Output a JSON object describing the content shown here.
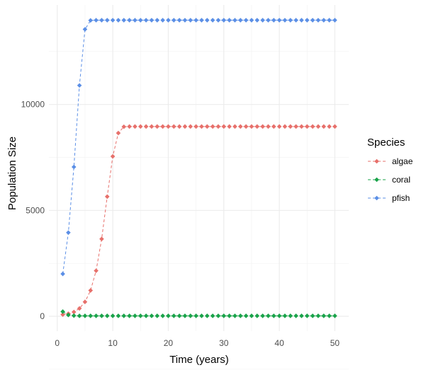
{
  "chart_data": {
    "type": "line",
    "xlabel": "Time (years)",
    "ylabel": "Population Size",
    "xlim": [
      -1.5,
      52.5
    ],
    "ylim": [
      -700,
      14700
    ],
    "x_ticks": [
      0,
      10,
      20,
      30,
      40,
      50
    ],
    "y_ticks": [
      0,
      5000,
      10000
    ],
    "grid": true,
    "legend": {
      "title": "Species",
      "position": "right"
    },
    "x": [
      1,
      2,
      3,
      4,
      5,
      6,
      7,
      8,
      9,
      10,
      11,
      12,
      13,
      14,
      15,
      16,
      17,
      18,
      19,
      20,
      21,
      22,
      23,
      24,
      25,
      26,
      27,
      28,
      29,
      30,
      31,
      32,
      33,
      34,
      35,
      36,
      37,
      38,
      39,
      40,
      41,
      42,
      43,
      44,
      45,
      46,
      47,
      48,
      49,
      50
    ],
    "series": [
      {
        "name": "algae",
        "color": "#e7706b",
        "values": [
          80,
          120,
          200,
          370,
          680,
          1220,
          2150,
          3650,
          5650,
          7550,
          8650,
          8950,
          8960,
          8960,
          8960,
          8960,
          8960,
          8960,
          8960,
          8960,
          8960,
          8960,
          8960,
          8960,
          8960,
          8960,
          8960,
          8960,
          8960,
          8960,
          8960,
          8960,
          8960,
          8960,
          8960,
          8960,
          8960,
          8960,
          8960,
          8960,
          8960,
          8960,
          8960,
          8960,
          8960,
          8960,
          8960,
          8960,
          8960,
          8960
        ]
      },
      {
        "name": "coral",
        "color": "#1aa34a",
        "values": [
          220,
          60,
          30,
          20,
          20,
          20,
          20,
          20,
          20,
          20,
          20,
          20,
          20,
          20,
          20,
          20,
          20,
          20,
          20,
          20,
          20,
          20,
          20,
          20,
          20,
          20,
          20,
          20,
          20,
          20,
          20,
          20,
          20,
          20,
          20,
          20,
          20,
          20,
          20,
          20,
          20,
          20,
          20,
          20,
          20,
          20,
          20,
          20,
          20,
          20
        ]
      },
      {
        "name": "pfish",
        "color": "#5b8fe6",
        "values": [
          2000,
          3950,
          7050,
          10900,
          13550,
          13970,
          13980,
          13980,
          13980,
          13980,
          13980,
          13980,
          13980,
          13980,
          13980,
          13980,
          13980,
          13980,
          13980,
          13980,
          13980,
          13980,
          13980,
          13980,
          13980,
          13980,
          13980,
          13980,
          13980,
          13980,
          13980,
          13980,
          13980,
          13980,
          13980,
          13980,
          13980,
          13980,
          13980,
          13980,
          13980,
          13980,
          13980,
          13980,
          13980,
          13980,
          13980,
          13980,
          13980,
          13980
        ]
      }
    ]
  }
}
